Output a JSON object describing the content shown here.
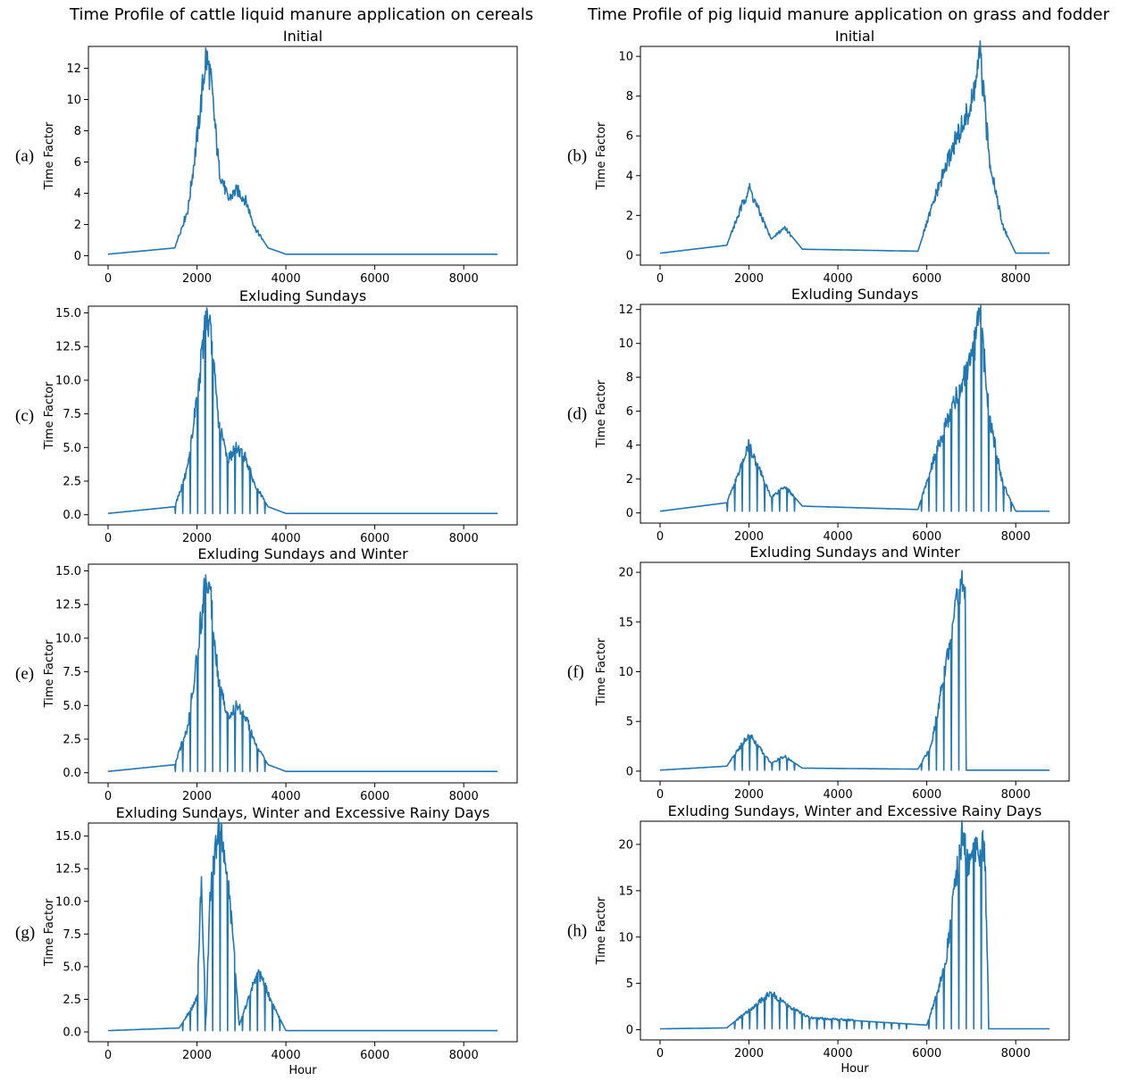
{
  "titles": {
    "left": "Time Profile of cattle liquid manure application on cereals",
    "right": "Time Profile of pig liquid manure application on grass and fodder"
  },
  "chart_data": [
    {
      "type": "line",
      "label": "(a)",
      "title": "Initial",
      "ylabel": "Time Factor",
      "xlabel": "",
      "xlim": [
        0,
        8760
      ],
      "ylim": [
        -0.6,
        13.4
      ],
      "xticks": [
        0,
        2000,
        4000,
        6000,
        8000
      ],
      "yticks": [
        0,
        2,
        4,
        6,
        8,
        10,
        12
      ],
      "yticklabels": [
        "0",
        "2",
        "4",
        "6",
        "8",
        "10",
        "12"
      ],
      "shape": "cattle",
      "mode": "initial",
      "series_color": "#1f77b4",
      "series": [
        {
          "x": [
            0,
            1500,
            1800,
            2000,
            2100,
            2200,
            2300,
            2500,
            2700,
            2900,
            3100,
            3300,
            3600,
            4000,
            8760
          ],
          "y": [
            0.1,
            0.5,
            3.0,
            7.5,
            10.0,
            12.8,
            11.5,
            5.5,
            3.6,
            4.2,
            3.5,
            1.8,
            0.5,
            0.1,
            0.1
          ]
        }
      ]
    },
    {
      "type": "line",
      "label": "(b)",
      "title": "Initial",
      "ylabel": "Time Factor",
      "xlabel": "",
      "xlim": [
        0,
        8760
      ],
      "ylim": [
        -0.5,
        10.5
      ],
      "xticks": [
        0,
        2000,
        4000,
        6000,
        8000
      ],
      "yticks": [
        0,
        2,
        4,
        6,
        8,
        10
      ],
      "yticklabels": [
        "0",
        "2",
        "4",
        "6",
        "8",
        "10"
      ],
      "shape": "pig",
      "mode": "initial",
      "series_color": "#1f77b4",
      "series": [
        {
          "x": [
            0,
            1500,
            2000,
            2500,
            2800,
            3200,
            5800,
            6200,
            6600,
            7000,
            7200,
            7400,
            7700,
            8000,
            8760
          ],
          "y": [
            0.1,
            0.5,
            3.4,
            0.8,
            1.4,
            0.3,
            0.2,
            3.0,
            5.5,
            7.5,
            10.0,
            5.0,
            1.5,
            0.1,
            0.1
          ]
        }
      ]
    },
    {
      "type": "line",
      "label": "(c)",
      "title": "Exluding Sundays",
      "ylabel": "Time Factor",
      "xlabel": "",
      "xlim": [
        0,
        8760
      ],
      "ylim": [
        -0.75,
        15.5
      ],
      "xticks": [
        0,
        2000,
        4000,
        6000,
        8000
      ],
      "yticks": [
        0,
        2.5,
        5,
        7.5,
        10,
        12.5,
        15
      ],
      "yticklabels": [
        "0.0",
        "2.5",
        "5.0",
        "7.5",
        "10.0",
        "12.5",
        "15.0"
      ],
      "shape": "cattle",
      "mode": "sundays",
      "series_color": "#1f77b4",
      "series": [
        {
          "x": [
            0,
            1500,
            1800,
            2000,
            2100,
            2200,
            2300,
            2500,
            2700,
            2900,
            3100,
            3300,
            3600,
            4000,
            8760
          ],
          "y": [
            0.1,
            0.6,
            3.5,
            8.8,
            11.5,
            15.0,
            13.5,
            6.5,
            4.2,
            5.0,
            4.2,
            2.2,
            0.6,
            0.1,
            0.1
          ]
        }
      ]
    },
    {
      "type": "line",
      "label": "(d)",
      "title": "Exluding Sundays",
      "ylabel": "Time Factor",
      "xlabel": "",
      "xlim": [
        0,
        8760
      ],
      "ylim": [
        -0.6,
        12.3
      ],
      "xticks": [
        0,
        2000,
        4000,
        6000,
        8000
      ],
      "yticks": [
        0,
        2,
        4,
        6,
        8,
        10,
        12
      ],
      "yticklabels": [
        "0",
        "2",
        "4",
        "6",
        "8",
        "10",
        "12"
      ],
      "shape": "pig",
      "mode": "sundays",
      "series_color": "#1f77b4",
      "series": [
        {
          "x": [
            0,
            1500,
            2000,
            2500,
            2800,
            3200,
            5800,
            6200,
            6600,
            7000,
            7200,
            7400,
            7700,
            8000,
            8760
          ],
          "y": [
            0.1,
            0.6,
            4.0,
            0.9,
            1.6,
            0.4,
            0.2,
            3.5,
            6.5,
            8.8,
            11.7,
            5.8,
            1.8,
            0.1,
            0.1
          ]
        }
      ]
    },
    {
      "type": "line",
      "label": "(e)",
      "title": "Exluding Sundays and Winter",
      "ylabel": "Time Factor",
      "xlabel": "",
      "xlim": [
        0,
        8760
      ],
      "ylim": [
        -0.75,
        15.5
      ],
      "xticks": [
        0,
        2000,
        4000,
        6000,
        8000
      ],
      "yticks": [
        0,
        2.5,
        5,
        7.5,
        10,
        12.5,
        15
      ],
      "yticklabels": [
        "0.0",
        "2.5",
        "5.0",
        "7.5",
        "10.0",
        "12.5",
        "15.0"
      ],
      "shape": "cattle",
      "mode": "sundays",
      "series_color": "#1f77b4",
      "series": [
        {
          "x": [
            0,
            1500,
            1800,
            2000,
            2100,
            2200,
            2300,
            2500,
            2700,
            2900,
            3100,
            3300,
            3600,
            4000,
            8760
          ],
          "y": [
            0.1,
            0.6,
            3.5,
            8.8,
            11.5,
            15.0,
            13.5,
            6.5,
            4.2,
            5.0,
            4.2,
            2.2,
            0.6,
            0.1,
            0.1
          ]
        }
      ]
    },
    {
      "type": "line",
      "label": "(f)",
      "title": "Exluding Sundays and Winter",
      "ylabel": "Time Factor",
      "xlabel": "",
      "xlim": [
        0,
        8760
      ],
      "ylim": [
        -1.0,
        21.0
      ],
      "xticks": [
        0,
        2000,
        4000,
        6000,
        8000
      ],
      "yticks": [
        0,
        5,
        10,
        15,
        20
      ],
      "yticklabels": [
        "0",
        "5",
        "10",
        "15",
        "20"
      ],
      "shape": "pig_winter",
      "mode": "sundays",
      "series_color": "#1f77b4",
      "series": [
        {
          "x": [
            0,
            1500,
            2000,
            2500,
            2800,
            3200,
            5800,
            6100,
            6400,
            6600,
            6800,
            6870,
            6880,
            8760
          ],
          "y": [
            0.1,
            0.5,
            3.7,
            0.8,
            1.5,
            0.3,
            0.2,
            2.5,
            10.0,
            15.0,
            20.0,
            19.0,
            0.1,
            0.1
          ]
        }
      ]
    },
    {
      "type": "line",
      "label": "(g)",
      "title": "Exluding Sundays, Winter and Excessive Rainy Days",
      "ylabel": "Time Factor",
      "xlabel": "Hour",
      "xlim": [
        0,
        8760
      ],
      "ylim": [
        -0.75,
        16.0
      ],
      "xticks": [
        0,
        2000,
        4000,
        6000,
        8000
      ],
      "yticks": [
        0,
        2.5,
        5,
        7.5,
        10,
        12.5,
        15
      ],
      "yticklabels": [
        "0.0",
        "2.5",
        "5.0",
        "7.5",
        "10.0",
        "12.5",
        "15.0"
      ],
      "shape": "cattle_rain",
      "mode": "rain",
      "series_color": "#1f77b4",
      "series": [
        {
          "x": [
            0,
            1600,
            2000,
            2100,
            2200,
            2300,
            2500,
            2600,
            2800,
            2950,
            3350,
            3450,
            3650,
            4000,
            8760
          ],
          "y": [
            0.1,
            0.3,
            2.5,
            11.8,
            0.5,
            11.0,
            15.5,
            14.0,
            8.0,
            0.5,
            4.5,
            4.2,
            2.5,
            0.1,
            0.1
          ]
        }
      ]
    },
    {
      "type": "line",
      "label": "(h)",
      "title": "Exluding Sundays, Winter and Excessive Rainy Days",
      "ylabel": "Time Factor",
      "xlabel": "Hour",
      "xlim": [
        0,
        8760
      ],
      "ylim": [
        -1.1,
        22.5
      ],
      "xticks": [
        0,
        2000,
        4000,
        6000,
        8000
      ],
      "yticks": [
        0,
        5,
        10,
        15,
        20
      ],
      "yticklabels": [
        "0",
        "5",
        "10",
        "15",
        "20"
      ],
      "shape": "pig_rain",
      "mode": "rain",
      "series_color": "#1f77b4",
      "series": [
        {
          "x": [
            0,
            1500,
            2100,
            2500,
            2800,
            3350,
            6000,
            6400,
            6800,
            6900,
            7000,
            7300,
            7400,
            8760
          ],
          "y": [
            0.1,
            0.2,
            2.5,
            4.0,
            2.8,
            1.3,
            0.5,
            6.5,
            21.5,
            18.0,
            18.5,
            20.0,
            0.1,
            0.1
          ]
        }
      ]
    }
  ]
}
